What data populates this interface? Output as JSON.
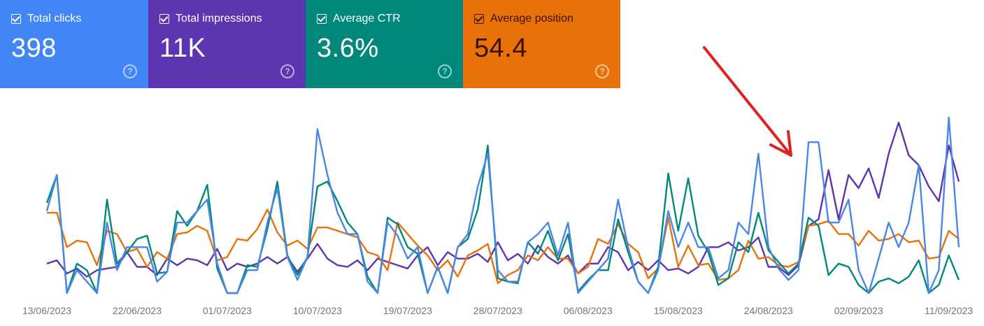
{
  "metrics": [
    {
      "label": "Total clicks",
      "value": "398",
      "color": "#4285f4",
      "text_color": "#ffffff",
      "checked": true,
      "help_icon": "?"
    },
    {
      "label": "Total impressions",
      "value": "11K",
      "color": "#5e35b1",
      "text_color": "#ffffff",
      "checked": true,
      "help_icon": "?"
    },
    {
      "label": "Average CTR",
      "value": "3.6%",
      "color": "#00897b",
      "text_color": "#ffffff",
      "checked": true,
      "help_icon": "?"
    },
    {
      "label": "Average position",
      "value": "54.4",
      "color": "#e8710a",
      "text_color": "#3a1300",
      "checked": true,
      "help_icon": "?"
    }
  ],
  "chart_data": {
    "type": "line",
    "title": "",
    "xlabel": "",
    "ylabel": "",
    "x_start": "13/06/2023",
    "x_end": "12/09/2023",
    "x_interval": "daily",
    "x_tick_labels": [
      "13/06/2023",
      "22/06/2023",
      "01/07/2023",
      "10/07/2023",
      "19/07/2023",
      "28/07/2023",
      "06/08/2023",
      "15/08/2023",
      "24/08/2023",
      "02/09/2023",
      "11/09/2023"
    ],
    "y_axis": "hidden (relative scale per series, 0 = chart bottom)",
    "ylim": [
      0,
      110
    ],
    "grid": false,
    "series": [
      {
        "name": "Total impressions",
        "color": "#5e35b1",
        "values": [
          18,
          20,
          12,
          15,
          10,
          14,
          15,
          16,
          25,
          16,
          16,
          11,
          21,
          17,
          21,
          20,
          17,
          27,
          14,
          18,
          16,
          18,
          22,
          18,
          22,
          13,
          21,
          30,
          21,
          17,
          16,
          20,
          14,
          21,
          19,
          17,
          15,
          23,
          28,
          17,
          25,
          21,
          21,
          24,
          19,
          31,
          20,
          24,
          18,
          29,
          22,
          18,
          23,
          12,
          18,
          18,
          28,
          25,
          14,
          19,
          14,
          20,
          14,
          15,
          12,
          16,
          28,
          28,
          31,
          26,
          28,
          34,
          16,
          16,
          11,
          17,
          41,
          45,
          75,
          45,
          72,
          64,
          76,
          58,
          85,
          104,
          84,
          78,
          65,
          56,
          90,
          68
        ]
      },
      {
        "name": "Average position",
        "color": "#e8710a",
        "values": [
          49,
          49,
          28,
          32,
          31,
          17,
          38,
          36,
          25,
          27,
          16,
          25,
          21,
          36,
          37,
          41,
          38,
          20,
          22,
          33,
          32,
          39,
          51,
          37,
          29,
          32,
          27,
          40,
          40,
          38,
          36,
          34,
          25,
          23,
          14,
          43,
          36,
          29,
          23,
          14,
          20,
          10,
          23,
          26,
          30,
          6,
          11,
          14,
          23,
          20,
          28,
          21,
          21,
          12,
          16,
          33,
          30,
          42,
          30,
          25,
          9,
          15,
          46,
          16,
          29,
          17,
          18,
          8,
          9,
          14,
          32,
          21,
          22,
          17,
          16,
          19,
          41,
          42,
          44,
          36,
          36,
          29,
          38,
          32,
          33,
          36,
          31,
          32,
          21,
          22,
          38,
          33
        ]
      },
      {
        "name": "Average CTR",
        "color": "#00897b",
        "values": [
          55,
          72,
          0,
          18,
          14,
          0,
          57,
          18,
          25,
          33,
          35,
          12,
          13,
          50,
          41,
          50,
          66,
          15,
          0,
          0,
          17,
          16,
          39,
          68,
          23,
          11,
          22,
          65,
          68,
          56,
          43,
          36,
          10,
          0,
          46,
          42,
          28,
          24,
          0,
          16,
          0,
          28,
          33,
          51,
          90,
          9,
          7,
          6,
          31,
          24,
          38,
          20,
          36,
          1,
          8,
          14,
          14,
          45,
          25,
          7,
          0,
          16,
          73,
          38,
          70,
          35,
          25,
          5,
          9,
          31,
          25,
          49,
          26,
          19,
          12,
          18,
          46,
          41,
          11,
          18,
          16,
          5,
          0,
          7,
          9,
          6,
          10,
          20,
          0,
          5,
          23,
          8
        ]
      },
      {
        "name": "Total clicks",
        "color": "#4a86e8",
        "values": [
          50,
          72,
          0,
          14,
          7,
          0,
          43,
          14,
          28,
          28,
          28,
          7,
          13,
          43,
          43,
          50,
          57,
          18,
          0,
          0,
          14,
          14,
          43,
          64,
          22,
          8,
          22,
          100,
          72,
          49,
          36,
          36,
          7,
          0,
          43,
          35,
          21,
          28,
          0,
          16,
          0,
          28,
          36,
          65,
          85,
          14,
          7,
          7,
          31,
          36,
          43,
          23,
          43,
          0,
          7,
          14,
          21,
          57,
          28,
          7,
          0,
          14,
          50,
          28,
          43,
          28,
          28,
          9,
          14,
          43,
          36,
          85,
          28,
          15,
          8,
          14,
          92,
          92,
          43,
          43,
          57,
          14,
          0,
          21,
          43,
          28,
          43,
          78,
          0,
          14,
          107,
          28
        ]
      }
    ]
  },
  "annotation": {
    "type": "arrow",
    "color": "#e02020"
  }
}
